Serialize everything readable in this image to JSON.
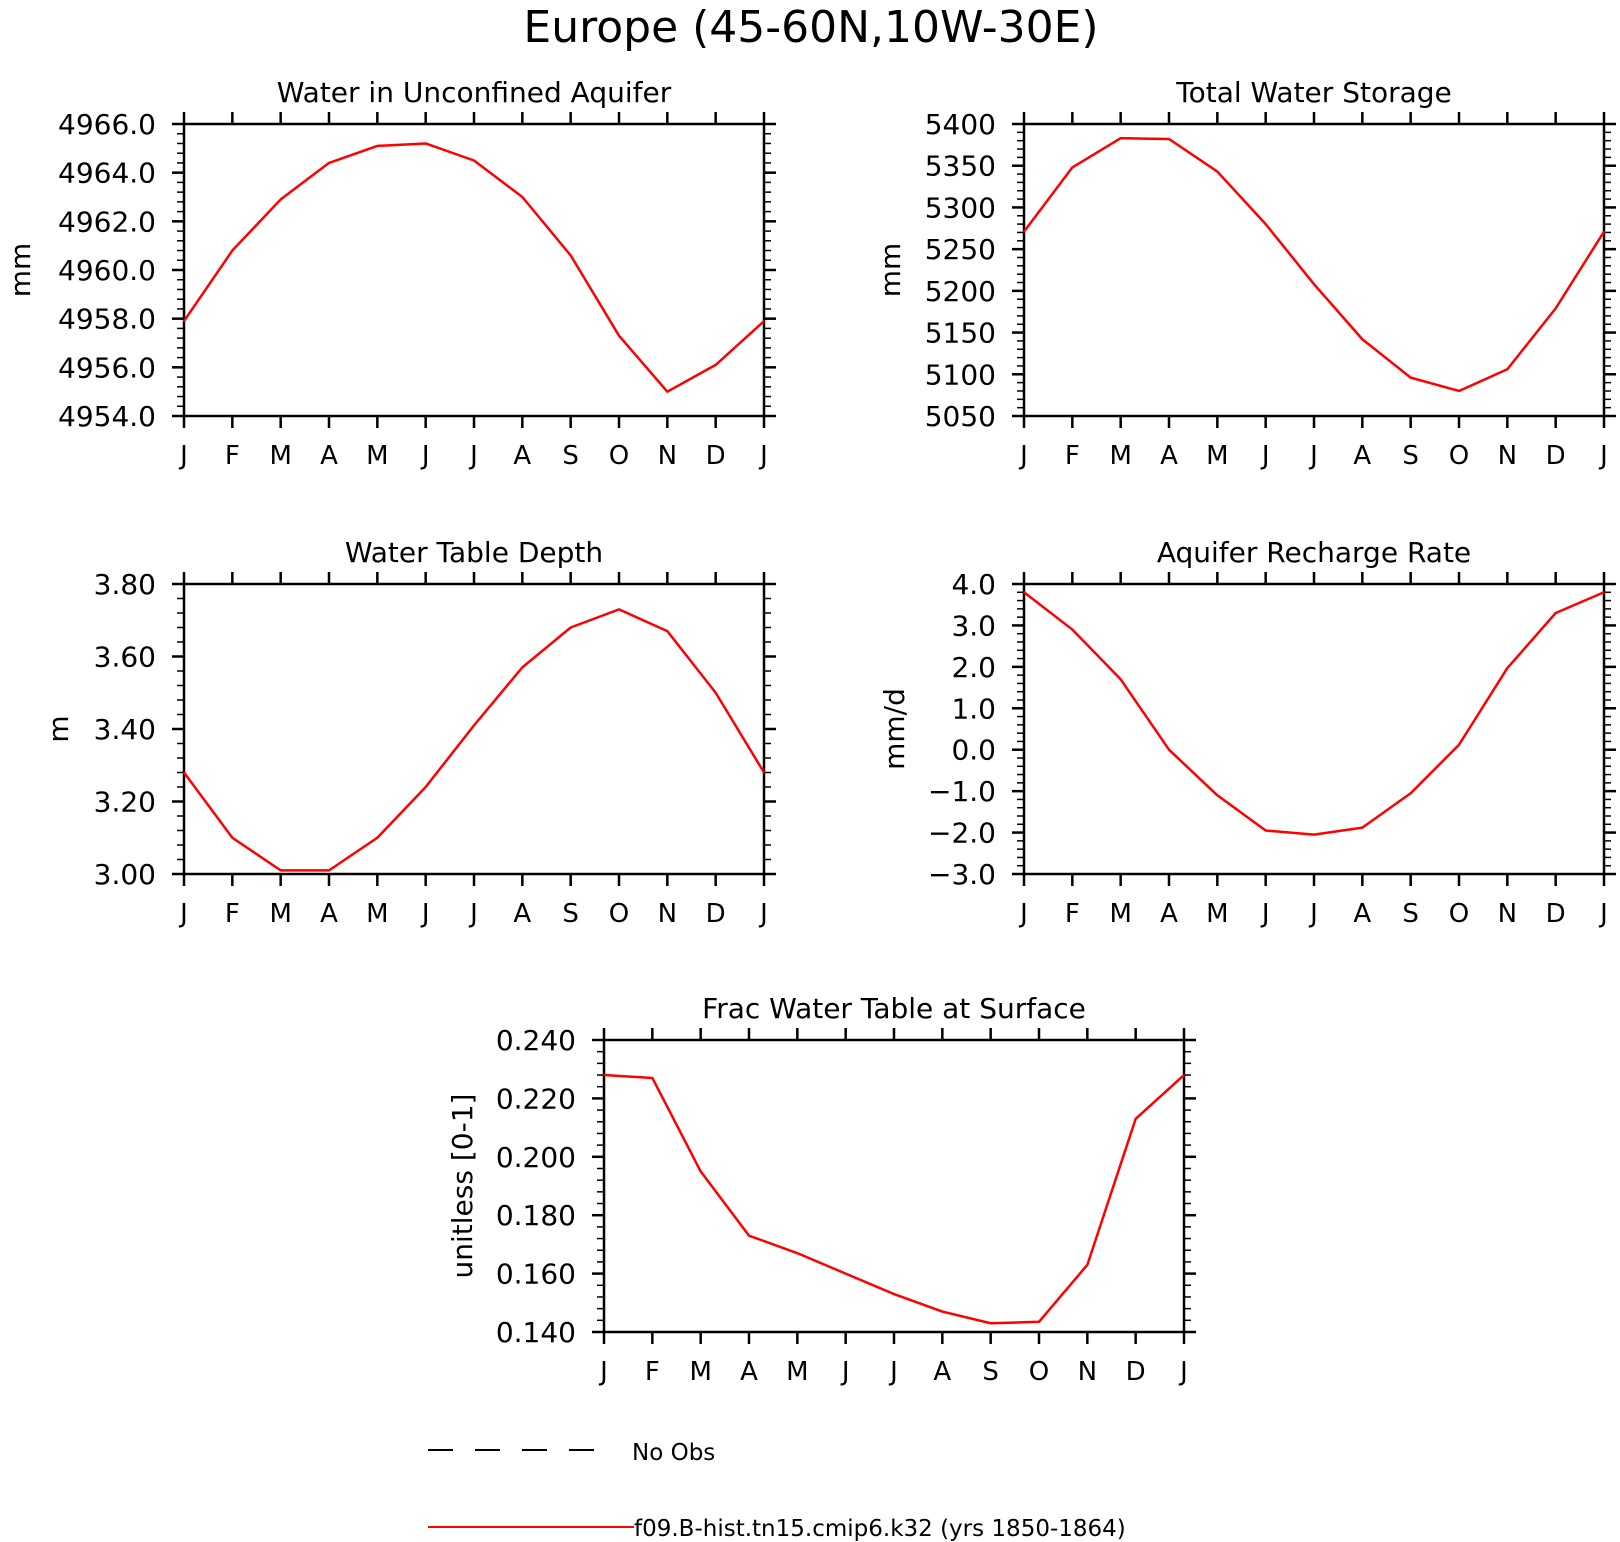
{
  "figure": {
    "title": "Europe (45-60N,10W-30E)"
  },
  "legend": {
    "items": [
      {
        "label": "No Obs",
        "color": "#000000",
        "dash": true
      },
      {
        "label": "f09.B-hist.tn15.cmip6.k32 (yrs 1850-1864)",
        "color": "#ff0000",
        "dash": false
      }
    ]
  },
  "chart_data": [
    {
      "type": "line",
      "title": "Water in Unconfined Aquifer",
      "ylabel": "mm",
      "xlabel": "",
      "categories": [
        "J",
        "F",
        "M",
        "A",
        "M",
        "J",
        "J",
        "A",
        "S",
        "O",
        "N",
        "D",
        "J"
      ],
      "ylim": [
        4954.0,
        4966.0
      ],
      "yticks": [
        "4954.0",
        "4956.0",
        "4958.0",
        "4960.0",
        "4962.0",
        "4964.0",
        "4966.0"
      ],
      "series": [
        {
          "name": "f09.B-hist.tn15.cmip6.k32 (yrs 1850-1864)",
          "color": "#ff0000",
          "values": [
            4957.9,
            4960.8,
            4962.9,
            4964.4,
            4965.1,
            4965.2,
            4964.5,
            4963.0,
            4960.6,
            4957.3,
            4955.0,
            4956.1,
            4957.9
          ]
        }
      ]
    },
    {
      "type": "line",
      "title": "Total Water Storage",
      "ylabel": "mm",
      "xlabel": "",
      "categories": [
        "J",
        "F",
        "M",
        "A",
        "M",
        "J",
        "J",
        "A",
        "S",
        "O",
        "N",
        "D",
        "J"
      ],
      "ylim": [
        5050,
        5400
      ],
      "yticks": [
        "5050",
        "5100",
        "5150",
        "5200",
        "5250",
        "5300",
        "5350",
        "5400"
      ],
      "series": [
        {
          "name": "f09.B-hist.tn15.cmip6.k32 (yrs 1850-1864)",
          "color": "#ff0000",
          "values": [
            5271,
            5348,
            5383,
            5382,
            5343,
            5280,
            5208,
            5142,
            5096,
            5080,
            5106,
            5179,
            5271
          ]
        }
      ]
    },
    {
      "type": "line",
      "title": "Water Table Depth",
      "ylabel": "m",
      "xlabel": "",
      "categories": [
        "J",
        "F",
        "M",
        "A",
        "M",
        "J",
        "J",
        "A",
        "S",
        "O",
        "N",
        "D",
        "J"
      ],
      "ylim": [
        3.0,
        3.8
      ],
      "yticks": [
        "3.00",
        "3.20",
        "3.40",
        "3.60",
        "3.80"
      ],
      "series": [
        {
          "name": "f09.B-hist.tn15.cmip6.k32 (yrs 1850-1864)",
          "color": "#ff0000",
          "values": [
            3.28,
            3.1,
            3.01,
            3.01,
            3.1,
            3.24,
            3.41,
            3.57,
            3.68,
            3.73,
            3.67,
            3.5,
            3.28
          ]
        }
      ]
    },
    {
      "type": "line",
      "title": "Aquifer Recharge Rate",
      "ylabel": "mm/d",
      "xlabel": "",
      "categories": [
        "J",
        "F",
        "M",
        "A",
        "M",
        "J",
        "J",
        "A",
        "S",
        "O",
        "N",
        "D",
        "J"
      ],
      "ylim": [
        -3.0,
        4.0
      ],
      "yticks": [
        "-3.0",
        "-2.0",
        "-1.0",
        "0.0",
        "1.0",
        "2.0",
        "3.0",
        "4.0"
      ],
      "series": [
        {
          "name": "f09.B-hist.tn15.cmip6.k32 (yrs 1850-1864)",
          "color": "#ff0000",
          "values": [
            3.8,
            2.9,
            1.7,
            0.0,
            -1.1,
            -1.95,
            -2.05,
            -1.88,
            -1.05,
            0.12,
            1.97,
            3.3,
            3.8
          ]
        }
      ]
    },
    {
      "type": "line",
      "title": "Frac Water Table at Surface",
      "ylabel": "unitless [0-1]",
      "xlabel": "",
      "categories": [
        "J",
        "F",
        "M",
        "A",
        "M",
        "J",
        "J",
        "A",
        "S",
        "O",
        "N",
        "D",
        "J"
      ],
      "ylim": [
        0.14,
        0.24
      ],
      "yticks": [
        "0.140",
        "0.160",
        "0.180",
        "0.200",
        "0.220",
        "0.240"
      ],
      "series": [
        {
          "name": "f09.B-hist.tn15.cmip6.k32 (yrs 1850-1864)",
          "color": "#ff0000",
          "values": [
            0.228,
            0.227,
            0.195,
            0.173,
            0.167,
            0.16,
            0.153,
            0.147,
            0.143,
            0.1435,
            0.163,
            0.213,
            0.228
          ]
        }
      ]
    }
  ]
}
